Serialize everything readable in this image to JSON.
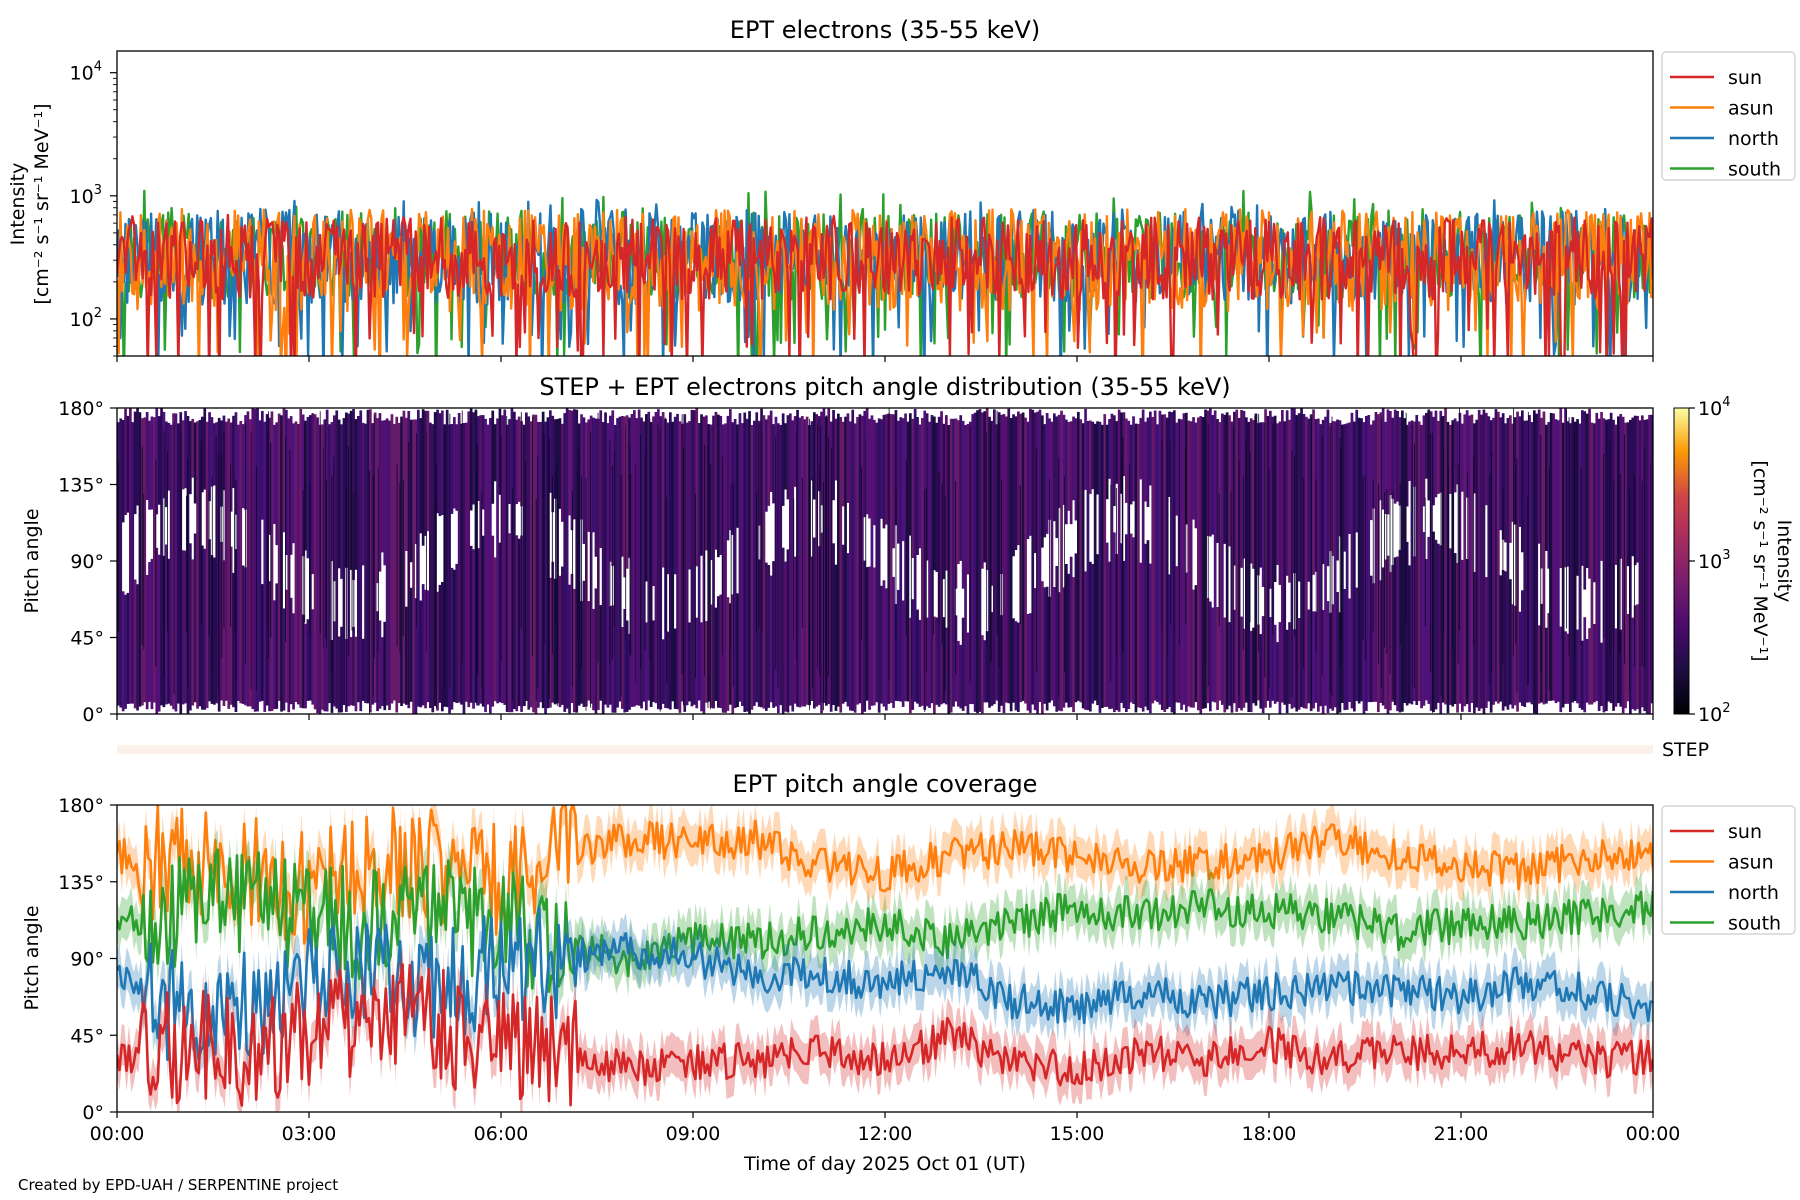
{
  "credit": "Created by EPD-UAH / SERPENTINE project",
  "colors": {
    "sun": "#d62728",
    "asun": "#ff7f0e",
    "north": "#1f77b4",
    "south": "#2ca02c",
    "step_band": "#fdf1ec"
  },
  "chart_data": [
    {
      "type": "line",
      "title": "EPT electrons (35-55 keV)",
      "ylabel_line1": "Intensity",
      "ylabel_line2": "[cm⁻² s⁻¹ sr⁻¹ MeV⁻¹]",
      "yscale": "log",
      "ylim": [
        50,
        15000
      ],
      "yticks": [
        {
          "value": 100,
          "base": "10",
          "exp": "2"
        },
        {
          "value": 1000,
          "base": "10",
          "exp": "3"
        },
        {
          "value": 10000,
          "base": "10",
          "exp": "4"
        }
      ],
      "legend": [
        "sun",
        "asun",
        "north",
        "south"
      ],
      "legend_placement": "outside-right",
      "series": [
        {
          "name": "south",
          "typical": 330,
          "spread": 0.26,
          "peak": 1100
        },
        {
          "name": "north",
          "typical": 320,
          "spread": 0.28,
          "peak": 950
        },
        {
          "name": "asun",
          "typical": 300,
          "spread": 0.3,
          "peak": 800
        },
        {
          "name": "sun",
          "typical": 310,
          "spread": 0.24,
          "peak": 700
        }
      ]
    },
    {
      "type": "heatmap",
      "title": "STEP + EPT electrons pitch angle distribution (35-55 keV)",
      "ylabel": "Pitch angle",
      "ylim": [
        0,
        180
      ],
      "yticks": [
        "0°",
        "45°",
        "90°",
        "135°",
        "180°"
      ],
      "colorbar": {
        "label_line1": "Intensity",
        "label_line2": "[cm⁻² s⁻¹ sr⁻¹ MeV⁻¹]",
        "scale": "log",
        "range": [
          100,
          10000
        ],
        "ticks": [
          {
            "base": "10",
            "exp": "2"
          },
          {
            "base": "10",
            "exp": "3"
          },
          {
            "base": "10",
            "exp": "4"
          }
        ],
        "colormap": "inferno"
      },
      "typical_intensity": 300
    },
    {
      "type": "area",
      "label": "STEP",
      "note": "empty STEP coverage band"
    },
    {
      "type": "line",
      "title": "EPT pitch angle coverage",
      "ylabel": "Pitch angle",
      "ylim": [
        0,
        180
      ],
      "yticks": [
        "0°",
        "45°",
        "90°",
        "135°",
        "180°"
      ],
      "legend": [
        "sun",
        "asun",
        "north",
        "south"
      ],
      "legend_placement": "outside-right",
      "shaded_band_halfwidth_deg": 12,
      "series": [
        {
          "name": "asun",
          "x": [
            0,
            1,
            2,
            3,
            4,
            5,
            6,
            7,
            8,
            9,
            10,
            11,
            12,
            13,
            14,
            15,
            16,
            17,
            18,
            19,
            20,
            21,
            22,
            23,
            24
          ],
          "y": [
            150,
            145,
            140,
            130,
            150,
            145,
            135,
            150,
            160,
            158,
            160,
            145,
            140,
            150,
            155,
            150,
            145,
            145,
            150,
            160,
            150,
            145,
            140,
            150,
            150
          ]
        },
        {
          "name": "south",
          "x": [
            0,
            1,
            2,
            3,
            4,
            5,
            6,
            7,
            8,
            9,
            10,
            11,
            12,
            13,
            14,
            15,
            16,
            17,
            18,
            19,
            20,
            21,
            22,
            23,
            24
          ],
          "y": [
            110,
            120,
            125,
            115,
            110,
            115,
            110,
            100,
            90,
            100,
            100,
            105,
            110,
            100,
            110,
            120,
            115,
            120,
            118,
            115,
            105,
            110,
            112,
            115,
            120
          ]
        },
        {
          "name": "north",
          "x": [
            0,
            1,
            2,
            3,
            4,
            5,
            6,
            7,
            8,
            9,
            10,
            11,
            12,
            13,
            14,
            15,
            16,
            17,
            18,
            19,
            20,
            21,
            22,
            23,
            24
          ],
          "y": [
            80,
            60,
            65,
            75,
            80,
            75,
            85,
            90,
            95,
            90,
            80,
            80,
            75,
            85,
            65,
            60,
            70,
            65,
            70,
            75,
            70,
            68,
            75,
            70,
            60
          ]
        },
        {
          "name": "sun",
          "x": [
            0,
            1,
            2,
            3,
            4,
            5,
            6,
            7,
            8,
            9,
            10,
            11,
            12,
            13,
            14,
            15,
            16,
            17,
            18,
            19,
            20,
            21,
            22,
            23,
            24
          ],
          "y": [
            30,
            40,
            35,
            45,
            55,
            50,
            40,
            35,
            25,
            30,
            30,
            35,
            30,
            45,
            30,
            25,
            35,
            30,
            40,
            30,
            35,
            35,
            40,
            30,
            32
          ]
        }
      ]
    }
  ],
  "shared_x": {
    "label": "Time of day 2025 Oct 01 (UT)",
    "ticks": [
      "00:00",
      "03:00",
      "06:00",
      "09:00",
      "12:00",
      "15:00",
      "18:00",
      "21:00",
      "00:00"
    ],
    "range_hours": [
      0,
      24
    ]
  }
}
